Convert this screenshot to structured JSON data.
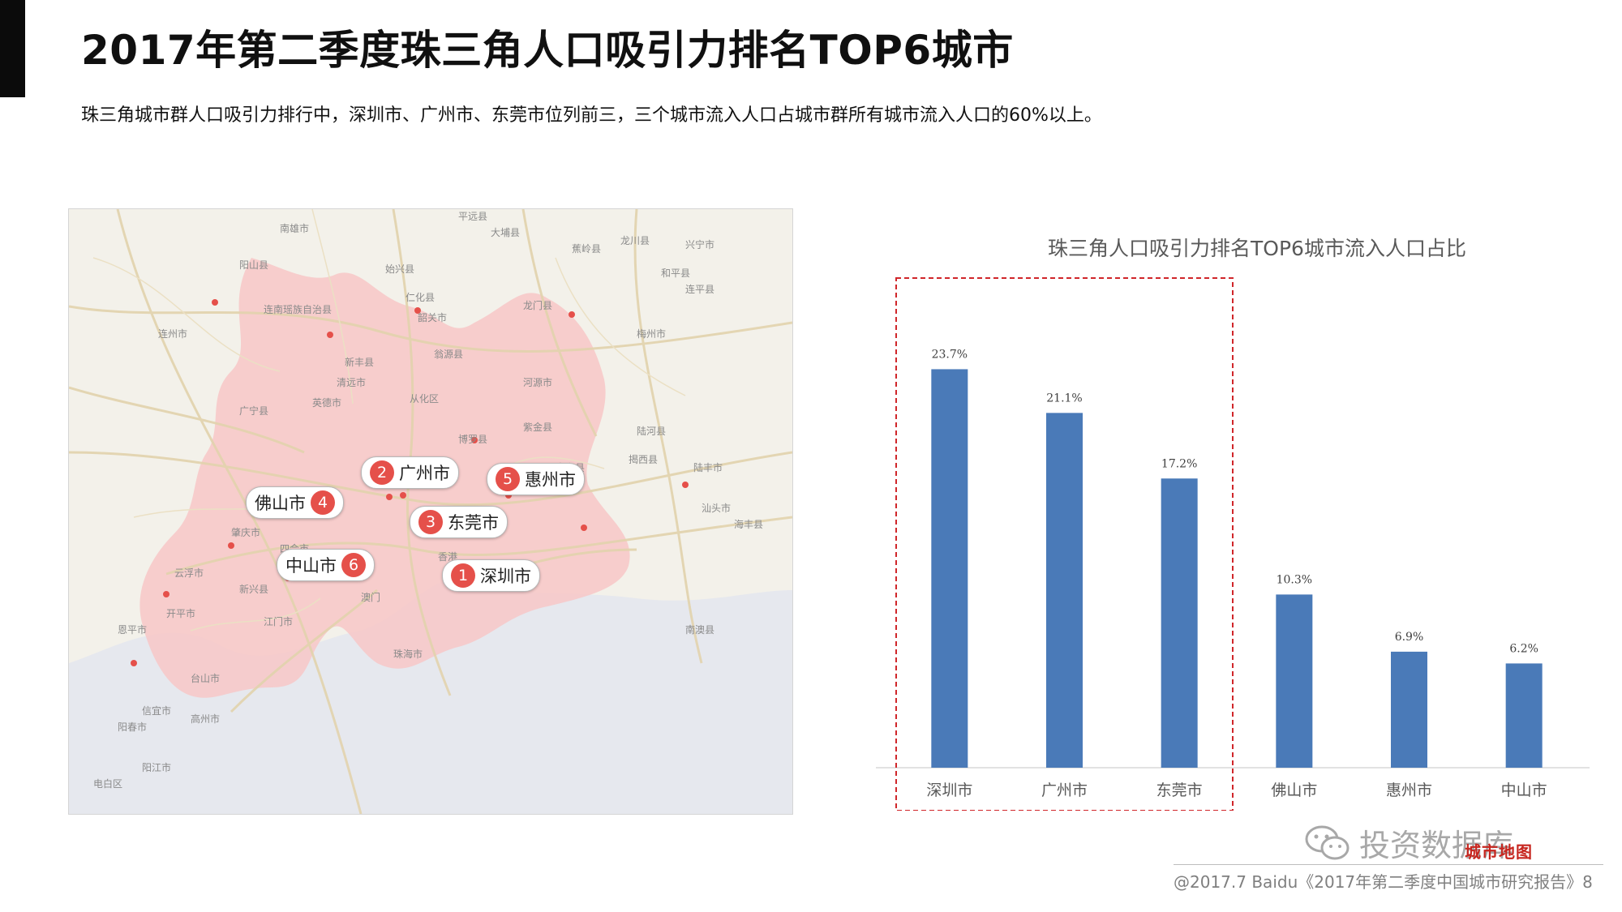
{
  "page": {
    "title": "2017年第二季度珠三角人口吸引力排名TOP6城市",
    "subtitle": "珠三角城市群人口吸引力排行中，深圳市、广州市、东莞市位列前三，三个城市流入人口占城市群所有城市流入人口的60%以上。"
  },
  "map": {
    "pins": [
      {
        "rank": "1",
        "city": "深圳市"
      },
      {
        "rank": "2",
        "city": "广州市"
      },
      {
        "rank": "3",
        "city": "东莞市"
      },
      {
        "rank": "4",
        "city": "佛山市"
      },
      {
        "rank": "5",
        "city": "惠州市"
      },
      {
        "rank": "6",
        "city": "中山市"
      }
    ],
    "labels": [
      "平远县",
      "蕉岭县",
      "大埔县",
      "连南瑶族自治县",
      "阳山县",
      "连州市",
      "仁化县",
      "始兴县",
      "南雄市",
      "龙川县",
      "兴宁市",
      "梅州市",
      "韶关市",
      "新丰县",
      "翁源县",
      "英德市",
      "清远市",
      "从化区",
      "河源市",
      "紫金县",
      "陆河县",
      "揭西县",
      "汕头市",
      "广宁县",
      "肇庆市",
      "四会市",
      "云浮市",
      "博罗县",
      "惠东县",
      "陆丰市",
      "新兴县",
      "江门市",
      "开平市",
      "恩平市",
      "台山市",
      "阳春市",
      "阳江市",
      "香港",
      "澳门",
      "珠海市",
      "南澳县",
      "电白区",
      "信宜市",
      "高州市",
      "连平县",
      "和平县",
      "龙门县",
      "海丰县"
    ],
    "colors": {
      "region": "#f7c7c7",
      "road": "#e8d9b5",
      "sea": "#e6e8ee",
      "rank_badge": "#e5504a"
    }
  },
  "chart_data": {
    "type": "bar",
    "title": "珠三角人口吸引力排名TOP6城市流入人口占比",
    "categories": [
      "深圳市",
      "广州市",
      "东莞市",
      "佛山市",
      "惠州市",
      "中山市"
    ],
    "values": [
      23.7,
      21.1,
      17.2,
      10.3,
      6.9,
      6.2
    ],
    "value_labels": [
      "23.7%",
      "21.1%",
      "17.2%",
      "10.3%",
      "6.9%",
      "6.2%"
    ],
    "unit": "%",
    "ylim": [
      0,
      27
    ],
    "grid": false,
    "bar_color": "#4a7ab8",
    "highlight": {
      "categories": [
        "深圳市",
        "广州市",
        "东莞市"
      ],
      "style": "dashed-box",
      "color": "#d0262a"
    }
  },
  "footer": {
    "watermark": "投资数据库",
    "badge": "城市地图",
    "source": "@2017.7 Baidu《2017年第二季度中国城市研究报告》8"
  }
}
